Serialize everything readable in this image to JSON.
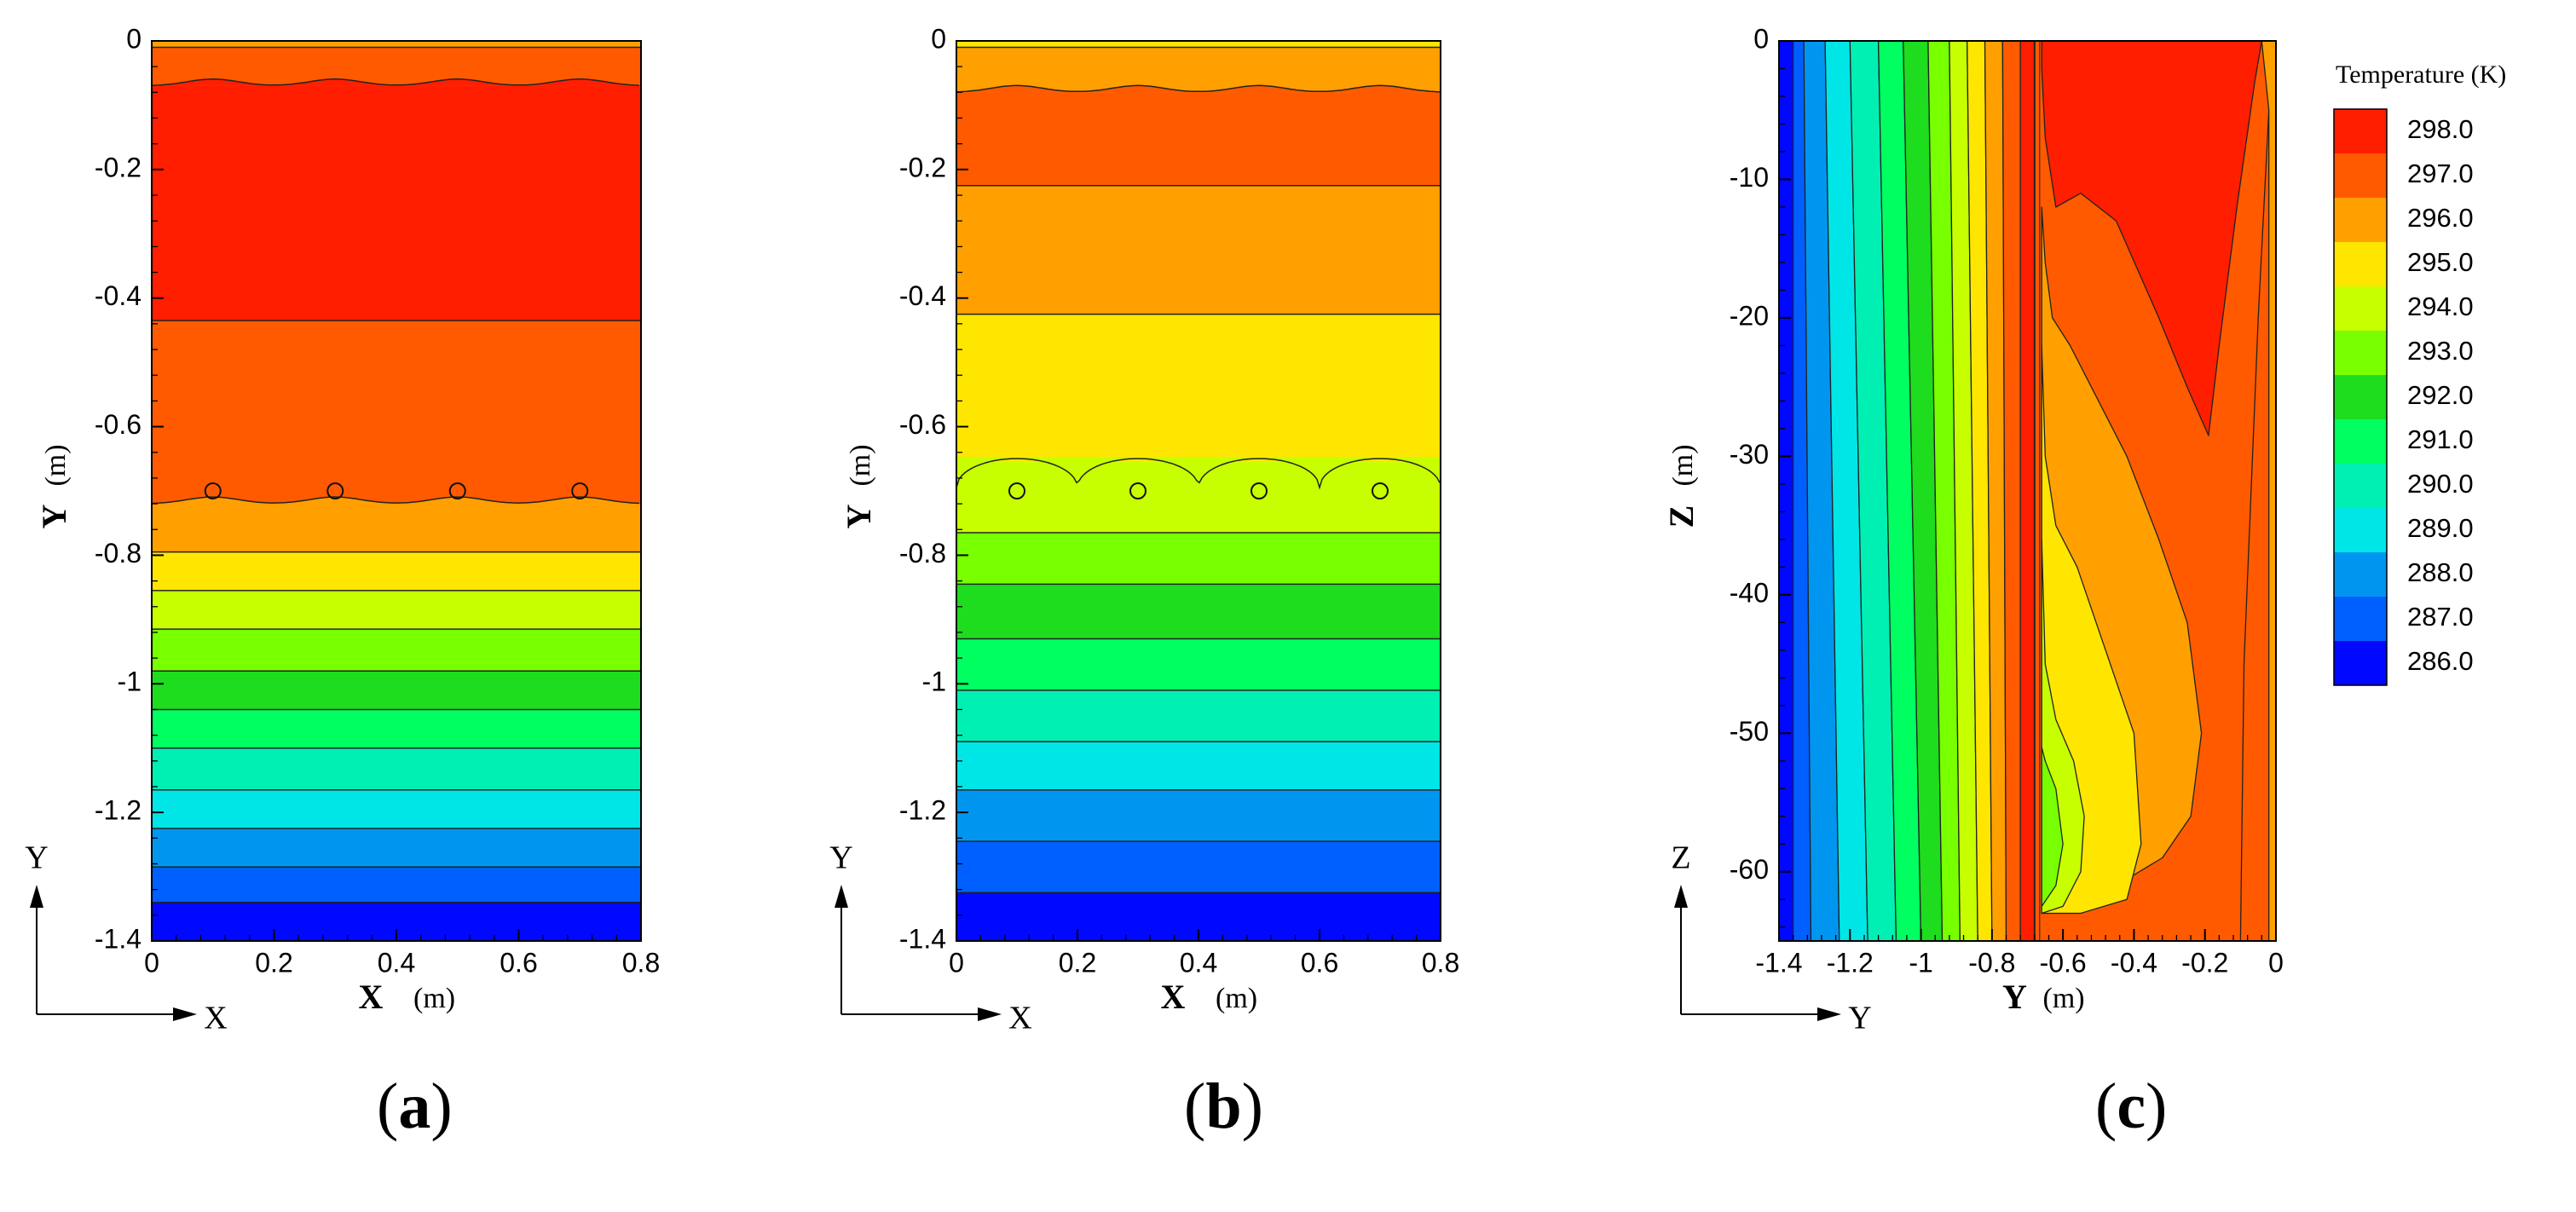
{
  "figure": {
    "panels": [
      {
        "letter": "a",
        "open": "(",
        "close": ")"
      },
      {
        "letter": "b",
        "open": "(",
        "close": ")"
      },
      {
        "letter": "c",
        "open": "(",
        "close": ")"
      }
    ]
  },
  "chart_data": [
    {
      "type": "heatmap",
      "panel": "a",
      "title": "",
      "xlabel": "X",
      "xunit": "(m)",
      "ylabel": "Y",
      "yunit": "(m)",
      "xlim": [
        0,
        0.8
      ],
      "ylim": [
        -1.4,
        0
      ],
      "xticks": [
        0,
        0.2,
        0.4,
        0.6,
        0.8
      ],
      "xticklabels": [
        "0",
        "0.2",
        "0.4",
        "0.6",
        "0.8"
      ],
      "yticks": [
        0,
        -0.2,
        -0.4,
        -0.6,
        -0.8,
        -1,
        -1.2,
        -1.4
      ],
      "yticklabels": [
        "0",
        "-0.2",
        "-0.4",
        "-0.6",
        "-0.8",
        "-1",
        "-1.2",
        "-1.4"
      ],
      "axes_triad": [
        "X",
        "Y"
      ],
      "pipe_positions": [
        [
          0.1,
          -0.7
        ],
        [
          0.3,
          -0.7
        ],
        [
          0.5,
          -0.7
        ],
        [
          0.7,
          -0.7
        ]
      ],
      "bands": [
        {
          "from": 0,
          "to": -0.01,
          "level": 296
        },
        {
          "from": -0.01,
          "to": -0.07,
          "level": 297,
          "wavy_bottom": true
        },
        {
          "from": -0.07,
          "to": -0.435,
          "level": 298
        },
        {
          "from": -0.435,
          "to": -0.72,
          "level": 297,
          "wavy_bottom": true
        },
        {
          "from": -0.72,
          "to": -0.795,
          "level": 296
        },
        {
          "from": -0.795,
          "to": -0.855,
          "level": 295
        },
        {
          "from": -0.855,
          "to": -0.915,
          "level": 294
        },
        {
          "from": -0.915,
          "to": -0.98,
          "level": 293
        },
        {
          "from": -0.98,
          "to": -1.04,
          "level": 292
        },
        {
          "from": -1.04,
          "to": -1.1,
          "level": 291
        },
        {
          "from": -1.1,
          "to": -1.165,
          "level": 290
        },
        {
          "from": -1.165,
          "to": -1.225,
          "level": 289
        },
        {
          "from": -1.225,
          "to": -1.285,
          "level": 288
        },
        {
          "from": -1.285,
          "to": -1.34,
          "level": 287
        },
        {
          "from": -1.34,
          "to": -1.4,
          "level": 286
        }
      ]
    },
    {
      "type": "heatmap",
      "panel": "b",
      "title": "",
      "xlabel": "X",
      "xunit": "(m)",
      "ylabel": "Y",
      "yunit": "(m)",
      "xlim": [
        0,
        0.8
      ],
      "ylim": [
        -1.4,
        0
      ],
      "xticks": [
        0,
        0.2,
        0.4,
        0.6,
        0.8
      ],
      "xticklabels": [
        "0",
        "0.2",
        "0.4",
        "0.6",
        "0.8"
      ],
      "yticks": [
        0,
        -0.2,
        -0.4,
        -0.6,
        -0.8,
        -1,
        -1.2,
        -1.4
      ],
      "yticklabels": [
        "0",
        "-0.2",
        "-0.4",
        "-0.6",
        "-0.8",
        "-1",
        "-1.2",
        "-1.4"
      ],
      "axes_triad": [
        "X",
        "Y"
      ],
      "pipe_positions": [
        [
          0.1,
          -0.7
        ],
        [
          0.3,
          -0.7
        ],
        [
          0.5,
          -0.7
        ],
        [
          0.7,
          -0.7
        ]
      ],
      "bands": [
        {
          "from": 0,
          "to": -0.01,
          "level": 295
        },
        {
          "from": -0.01,
          "to": -0.08,
          "level": 296,
          "wavy_bottom": true
        },
        {
          "from": -0.08,
          "to": -0.225,
          "level": 297
        },
        {
          "from": -0.225,
          "to": -0.425,
          "level": 296
        },
        {
          "from": -0.425,
          "to": -0.655,
          "level": 295,
          "scalloped_bottom": true
        },
        {
          "from": -0.655,
          "to": -0.765,
          "level": 294
        },
        {
          "from": -0.765,
          "to": -0.845,
          "level": 293
        },
        {
          "from": -0.845,
          "to": -0.93,
          "level": 292
        },
        {
          "from": -0.93,
          "to": -1.01,
          "level": 291
        },
        {
          "from": -1.01,
          "to": -1.09,
          "level": 290
        },
        {
          "from": -1.09,
          "to": -1.165,
          "level": 289
        },
        {
          "from": -1.165,
          "to": -1.245,
          "level": 288
        },
        {
          "from": -1.245,
          "to": -1.325,
          "level": 287
        },
        {
          "from": -1.325,
          "to": -1.4,
          "level": 286
        }
      ]
    },
    {
      "type": "heatmap",
      "panel": "c",
      "title": "",
      "xlabel": "Y",
      "xunit": "(m)",
      "ylabel": "Z",
      "yunit": "(m)",
      "xlim": [
        -1.4,
        0
      ],
      "ylim": [
        -65,
        0
      ],
      "xticks": [
        -1.4,
        -1.2,
        -1,
        -0.8,
        -0.6,
        -0.4,
        -0.2,
        0
      ],
      "xticklabels": [
        "-1.4",
        "-1.2",
        "-1",
        "-0.8",
        "-0.6",
        "-0.4",
        "-0.2",
        "0"
      ],
      "yticks": [
        0,
        -10,
        -20,
        -30,
        -40,
        -50,
        -60
      ],
      "yticklabels": [
        "0",
        "-10",
        "-20",
        "-30",
        "-40",
        "-50",
        "-60"
      ],
      "axes_triad": [
        "Y",
        "Z"
      ],
      "soil_strips_top": [
        {
          "from": -1.4,
          "to": -1.36,
          "level": 286
        },
        {
          "from": -1.36,
          "to": -1.33,
          "level": 287
        },
        {
          "from": -1.33,
          "to": -1.27,
          "level": 288
        },
        {
          "from": -1.27,
          "to": -1.2,
          "level": 289
        },
        {
          "from": -1.2,
          "to": -1.12,
          "level": 290
        },
        {
          "from": -1.12,
          "to": -1.05,
          "level": 291
        },
        {
          "from": -1.05,
          "to": -0.98,
          "level": 292
        },
        {
          "from": -0.98,
          "to": -0.92,
          "level": 293
        },
        {
          "from": -0.92,
          "to": -0.87,
          "level": 294
        },
        {
          "from": -0.87,
          "to": -0.82,
          "level": 295
        },
        {
          "from": -0.82,
          "to": -0.77,
          "level": 296
        },
        {
          "from": -0.77,
          "to": -0.72,
          "level": 297
        },
        {
          "from": -0.72,
          "to": -0.68,
          "level": 298
        }
      ],
      "soil_strips_bottom": [
        {
          "from": -1.4,
          "to": -1.36,
          "level": 286
        },
        {
          "from": -1.36,
          "to": -1.31,
          "level": 287
        },
        {
          "from": -1.31,
          "to": -1.23,
          "level": 288
        },
        {
          "from": -1.23,
          "to": -1.15,
          "level": 289
        },
        {
          "from": -1.15,
          "to": -1.07,
          "level": 290
        },
        {
          "from": -1.07,
          "to": -1.0,
          "level": 291
        },
        {
          "from": -1.0,
          "to": -0.94,
          "level": 292
        },
        {
          "from": -0.94,
          "to": -0.89,
          "level": 293
        },
        {
          "from": -0.89,
          "to": -0.84,
          "level": 294
        },
        {
          "from": -0.84,
          "to": -0.8,
          "level": 295
        },
        {
          "from": -0.8,
          "to": -0.76,
          "level": 296
        },
        {
          "from": -0.76,
          "to": -0.72,
          "level": 297
        },
        {
          "from": -0.72,
          "to": -0.68,
          "level": 298
        }
      ],
      "inner_boundary_y": -0.68,
      "right_region_contours": [
        {
          "level": 297,
          "points": [
            [
              -0.68,
              -1
            ],
            [
              -0.68,
              -65
            ],
            [
              -0.1,
              -65
            ],
            [
              -0.09,
              -45
            ],
            [
              -0.05,
              -20
            ],
            [
              -0.02,
              -5
            ],
            [
              -0.01,
              0
            ],
            [
              -0.68,
              0
            ]
          ]
        },
        {
          "level": 298,
          "points": [
            [
              -0.66,
              -2
            ],
            [
              -0.65,
              -7
            ],
            [
              -0.62,
              -12
            ],
            [
              -0.55,
              -11
            ],
            [
              -0.45,
              -13
            ],
            [
              -0.33,
              -20
            ],
            [
              -0.25,
              -25
            ],
            [
              -0.19,
              -28.5
            ],
            [
              -0.16,
              -22
            ],
            [
              -0.11,
              -12
            ],
            [
              -0.06,
              -3
            ],
            [
              -0.04,
              0
            ],
            [
              -0.66,
              0
            ]
          ]
        },
        {
          "level": 296,
          "points": [
            [
              -0.66,
              -12
            ],
            [
              -0.66,
              -63
            ],
            [
              -0.55,
              -63
            ],
            [
              -0.45,
              -61
            ],
            [
              -0.32,
              -59
            ],
            [
              -0.24,
              -56
            ],
            [
              -0.21,
              -50
            ],
            [
              -0.25,
              -42
            ],
            [
              -0.33,
              -36
            ],
            [
              -0.42,
              -30
            ],
            [
              -0.5,
              -26
            ],
            [
              -0.58,
              -22
            ],
            [
              -0.63,
              -20
            ],
            [
              -0.65,
              -16
            ]
          ]
        },
        {
          "level": 295,
          "points": [
            [
              -0.66,
              -22
            ],
            [
              -0.66,
              -63
            ],
            [
              -0.55,
              -63
            ],
            [
              -0.42,
              -62
            ],
            [
              -0.38,
              -58
            ],
            [
              -0.4,
              -50
            ],
            [
              -0.48,
              -44
            ],
            [
              -0.56,
              -38
            ],
            [
              -0.62,
              -35
            ],
            [
              -0.65,
              -30
            ]
          ]
        },
        {
          "level": 294,
          "points": [
            [
              -0.66,
              -36
            ],
            [
              -0.66,
              -63
            ],
            [
              -0.6,
              -62.5
            ],
            [
              -0.55,
              -60
            ],
            [
              -0.54,
              -56
            ],
            [
              -0.57,
              -52
            ],
            [
              -0.62,
              -49
            ],
            [
              -0.65,
              -45
            ]
          ]
        },
        {
          "level": 293,
          "points": [
            [
              -0.66,
              -51
            ],
            [
              -0.66,
              -62.5
            ],
            [
              -0.62,
              -61
            ],
            [
              -0.6,
              -58
            ],
            [
              -0.62,
              -54
            ],
            [
              -0.65,
              -52
            ]
          ]
        },
        {
          "level": 296,
          "points": [
            [
              -0.04,
              0
            ],
            [
              -0.02,
              -5
            ],
            [
              -0.02,
              -65
            ],
            [
              0,
              -65
            ],
            [
              0,
              0
            ]
          ]
        }
      ],
      "colorbar": {
        "title": "Temperature (K)",
        "levels": [
          298,
          297,
          296,
          295,
          294,
          293,
          292,
          291,
          290,
          289,
          288,
          287,
          286
        ],
        "labels": [
          "298.0",
          "297.0",
          "296.0",
          "295.0",
          "294.0",
          "293.0",
          "292.0",
          "291.0",
          "290.0",
          "289.0",
          "288.0",
          "287.0",
          "286.0"
        ],
        "placement": "right",
        "colors": {
          "298": "#ff1e00",
          "297": "#ff5a00",
          "296": "#ffa000",
          "295": "#ffe600",
          "294": "#c8ff00",
          "293": "#78ff00",
          "292": "#1edc1e",
          "291": "#00ff60",
          "290": "#00f0b4",
          "289": "#00e6e6",
          "288": "#0096f0",
          "287": "#0060ff",
          "286": "#0008ff"
        }
      }
    }
  ]
}
